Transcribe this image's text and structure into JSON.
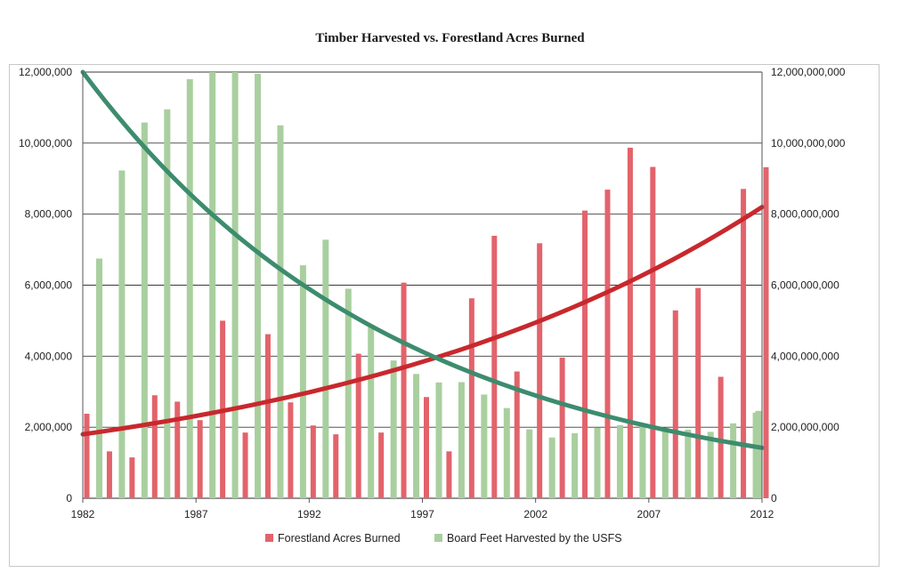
{
  "chart_data": {
    "type": "bar",
    "title": "Timber Harvested vs. Forestland Acres Burned",
    "x": [
      1982,
      1983,
      1984,
      1985,
      1986,
      1987,
      1988,
      1989,
      1990,
      1991,
      1992,
      1993,
      1994,
      1995,
      1996,
      1997,
      1998,
      1999,
      2000,
      2001,
      2002,
      2003,
      2004,
      2005,
      2006,
      2007,
      2008,
      2009,
      2010,
      2011,
      2012
    ],
    "x_tick_labels": [
      "1982",
      "1987",
      "1992",
      "1997",
      "2002",
      "2007",
      "2012"
    ],
    "y_left": {
      "ylim": [
        0,
        12000000
      ],
      "tick_labels": [
        "0",
        "2,000,000",
        "4,000,000",
        "6,000,000",
        "8,000,000",
        "10,000,000",
        "12,000,000"
      ]
    },
    "y_right": {
      "ylim": [
        0,
        12000000000
      ],
      "tick_labels": [
        "0",
        "2,000,000,000",
        "4,000,000,000",
        "6,000,000,000",
        "8,000,000,000",
        "10,000,000,000",
        "12,000,000,000"
      ]
    },
    "series": [
      {
        "name": "Forestland Acres Burned",
        "axis": "left",
        "color": "#e3636b",
        "values": [
          2380000,
          1320000,
          1150000,
          2900000,
          2720000,
          2200000,
          5000000,
          1850000,
          4620000,
          2700000,
          2050000,
          1800000,
          4070000,
          1850000,
          6070000,
          2850000,
          1320000,
          5630000,
          7390000,
          3570000,
          7180000,
          3960000,
          8100000,
          8690000,
          9870000,
          9330000,
          5290000,
          5920000,
          3420000,
          8710000,
          9320000
        ]
      },
      {
        "name": "Board Feet Harvested by the USFS",
        "axis": "right",
        "color": "#a9cf9f",
        "values": [
          6750000000,
          9230000000,
          10580000000,
          10950000000,
          11800000000,
          12000000000,
          12000000000,
          11950000000,
          10500000000,
          6560000000,
          7280000000,
          5900000000,
          4820000000,
          3880000000,
          3500000000,
          3260000000,
          3270000000,
          2920000000,
          2540000000,
          1940000000,
          1710000000,
          1830000000,
          1990000000,
          2060000000,
          2100000000,
          1990000000,
          1930000000,
          1870000000,
          2110000000,
          2410000000,
          2460000000
        ]
      }
    ],
    "trendlines": [
      {
        "of": "Forestland Acres Burned",
        "axis": "left",
        "color": "#c8282d",
        "start": [
          1982,
          1800000
        ],
        "end": [
          2012,
          8200000
        ]
      },
      {
        "of": "Board Feet Harvested by the USFS",
        "axis": "right",
        "color": "#3d8c6e",
        "start": [
          1982,
          12000000000
        ],
        "end": [
          2012,
          1420000000
        ]
      }
    ],
    "legend": "bottom-center",
    "grid": true
  }
}
